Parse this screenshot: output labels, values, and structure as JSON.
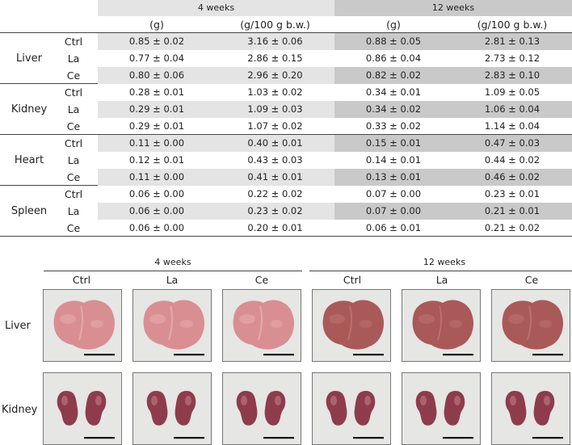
{
  "table": {
    "periods": [
      "4 weeks",
      "12 weeks"
    ],
    "units": [
      "(g)",
      "(g/100 g b.w.)",
      "(g)",
      "(g/100 g b.w.)"
    ],
    "organs": [
      {
        "name": "Liver",
        "rows": [
          {
            "group": "Ctrl",
            "values": [
              "0.85 ± 0.02",
              "3.16 ± 0.06",
              "0.88 ± 0.05",
              "2.81 ± 0.13"
            ]
          },
          {
            "group": "La",
            "values": [
              "0.77 ± 0.04",
              "2.86 ± 0.15",
              "0.86 ± 0.04",
              "2.73 ± 0.12"
            ]
          },
          {
            "group": "Ce",
            "values": [
              "0.80 ± 0.06",
              "2.96 ± 0.20",
              "0.82 ± 0.02",
              "2.83 ± 0.10"
            ]
          }
        ]
      },
      {
        "name": "Kidney",
        "rows": [
          {
            "group": "Ctrl",
            "values": [
              "0.28 ± 0.01",
              "1.03 ± 0.02",
              "0.34 ± 0.01",
              "1.09 ± 0.05"
            ]
          },
          {
            "group": "La",
            "values": [
              "0.29 ± 0.01",
              "1.09 ± 0.03",
              "0.34 ± 0.02",
              "1.06 ± 0.04"
            ]
          },
          {
            "group": "Ce",
            "values": [
              "0.29 ± 0.01",
              "1.07 ± 0.02",
              "0.33 ± 0.02",
              "1.14 ± 0.04"
            ]
          }
        ]
      },
      {
        "name": "Heart",
        "rows": [
          {
            "group": "Ctrl",
            "values": [
              "0.11 ± 0.00",
              "0.40 ± 0.01",
              "0.15 ± 0.01",
              "0.47 ± 0.03"
            ]
          },
          {
            "group": "La",
            "values": [
              "0.12 ± 0.01",
              "0.43 ± 0.03",
              "0.14 ± 0.01",
              "0.44 ± 0.02"
            ]
          },
          {
            "group": "Ce",
            "values": [
              "0.11 ± 0.00",
              "0.41 ± 0.01",
              "0.13 ± 0.01",
              "0.46 ± 0.02"
            ]
          }
        ]
      },
      {
        "name": "Spleen",
        "rows": [
          {
            "group": "Ctrl",
            "values": [
              "0.06 ± 0.00",
              "0.22 ± 0.02",
              "0.07 ± 0.00",
              "0.23 ± 0.01"
            ]
          },
          {
            "group": "La",
            "values": [
              "0.06 ± 0.00",
              "0.23 ± 0.02",
              "0.07 ± 0.00",
              "0.21 ± 0.01"
            ]
          },
          {
            "group": "Ce",
            "values": [
              "0.06 ± 0.00",
              "0.20 ± 0.01",
              "0.06 ± 0.01",
              "0.21 ± 0.02"
            ]
          }
        ]
      }
    ]
  },
  "photos": {
    "periods": [
      "4 weeks",
      "12 weeks"
    ],
    "groups": [
      "Ctrl",
      "La",
      "Ce",
      "Ctrl",
      "La",
      "Ce"
    ],
    "organs": [
      "Liver",
      "Kidney"
    ]
  },
  "colors": {
    "shade_light": "#e4e4e4",
    "shade_dark": "#c9c9c9",
    "liver_4w": "#d98f92",
    "liver_12w": "#a95a58",
    "kidney": "#8e3c4b",
    "photo_bg": "#e6e6e4"
  }
}
